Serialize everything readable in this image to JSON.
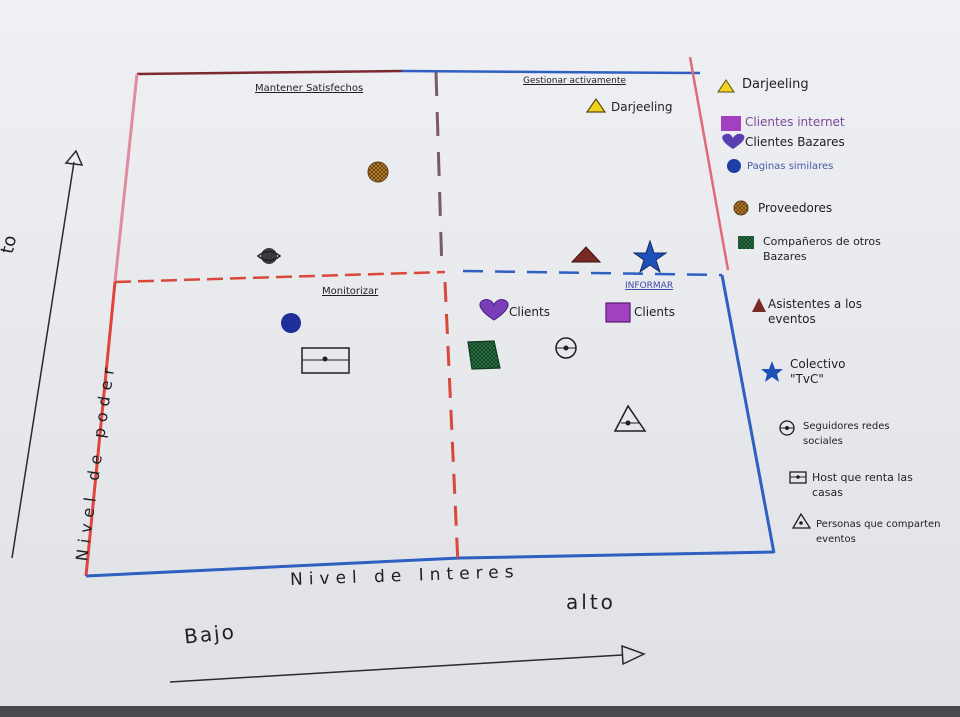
{
  "quadrants": {
    "top_left": "Mantener Satisfechos",
    "top_right": "Gestionar activamente",
    "bottom_left": "Monitorizar",
    "bottom_right": "Informar"
  },
  "axes": {
    "x_title": "Nivel de Interes",
    "x_low": "Bajo",
    "x_high": "alto",
    "y_title": "Nivel de poder",
    "y_high": "to"
  },
  "inline_labels": {
    "darjeeling": "Darjeeling",
    "clients_heart": "Clients",
    "clients_square": "Clients"
  },
  "legend": [
    {
      "icon": "triangle-yellow-icon",
      "label": "Darjeeling"
    },
    {
      "icon": "square-purple-icon",
      "label": "Clientes internet"
    },
    {
      "icon": "heart-purple-icon",
      "label": "Clientes Bazares"
    },
    {
      "icon": "circle-blue-icon",
      "label": "Paginas similares"
    },
    {
      "icon": "hatched-circle-orange-icon",
      "label": "Proveedores"
    },
    {
      "icon": "hatched-square-green-icon",
      "label": "Compañeros de otros Bazares"
    },
    {
      "icon": "triangle-darkred-icon",
      "label": "Asistentes a los eventos"
    },
    {
      "icon": "star-blue-icon",
      "label": "Colectivo \"TvC\""
    },
    {
      "icon": "circle-dot-icon",
      "label": "Seguidores redes sociales"
    },
    {
      "icon": "rect-dot-icon",
      "label": "Host que renta las casas"
    },
    {
      "icon": "triangle-outline-icon",
      "label": "Personas que comparten eventos"
    }
  ],
  "colors": {
    "red_line": "#d9483b",
    "blue_line": "#2f5fc0",
    "pink_line": "#e28aa0",
    "purple": "#8b3fb0",
    "blue_marker": "#1f3fa6",
    "orange": "#c98a2a",
    "green": "#2f7a4a",
    "darkred": "#7a2a22",
    "yellow": "#e3c21a"
  }
}
